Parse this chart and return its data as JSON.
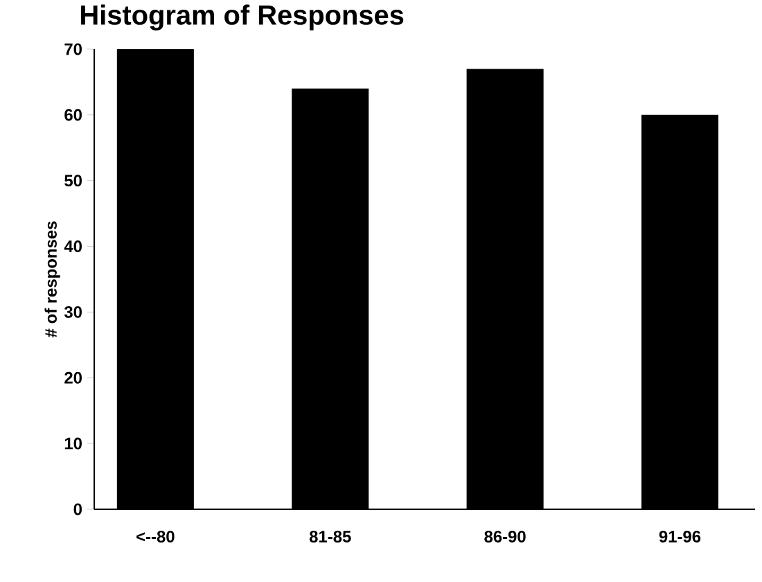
{
  "chart_data": {
    "type": "bar",
    "title": "Histogram of Responses",
    "ylabel": "# of responses",
    "categories": [
      "<--80",
      "81-85",
      "86-90",
      "91-96"
    ],
    "values": [
      70,
      64,
      67,
      60
    ],
    "color": "#000000",
    "ylim": [
      0,
      70
    ],
    "yticks": [
      0,
      10,
      20,
      30,
      40,
      50,
      60,
      70
    ]
  }
}
